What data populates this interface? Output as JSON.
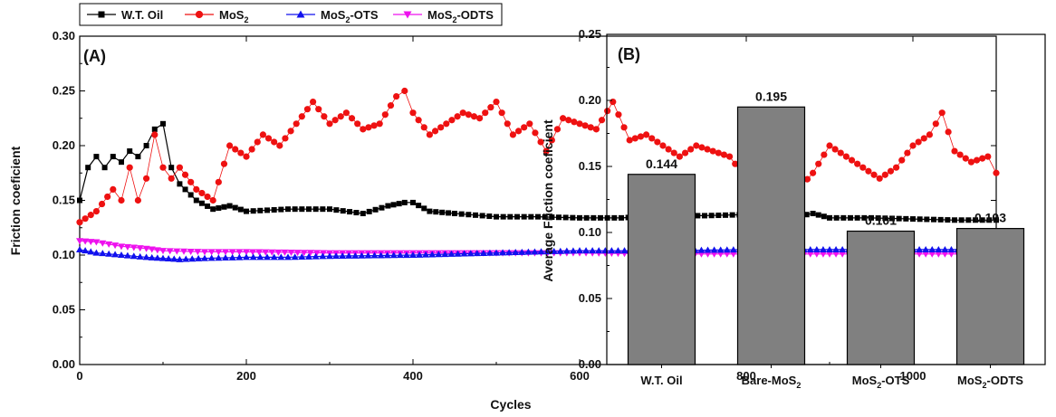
{
  "chart_data": [
    {
      "type": "line",
      "panel_label": "(A)",
      "xlabel": "Cycles",
      "ylabel": "Friction coeficient",
      "xlim": [
        0,
        1100
      ],
      "ylim": [
        0.0,
        0.3
      ],
      "x_ticks": [
        "0",
        "200",
        "400",
        "600",
        "800",
        "1000"
      ],
      "y_ticks": [
        "0.00",
        "0.05",
        "0.10",
        "0.15",
        "0.20",
        "0.25",
        "0.30"
      ],
      "legend_position": "top",
      "legend": [
        {
          "text": "W.T. Oil",
          "sub": "",
          "after": "",
          "color": "#000000",
          "marker": "square"
        },
        {
          "text": "MoS",
          "sub": "2",
          "after": "",
          "color": "#ee1111",
          "marker": "circle"
        },
        {
          "text": "MoS",
          "sub": "2",
          "after": "-OTS",
          "color": "#1111ee",
          "marker": "triangle-up"
        },
        {
          "text": "MoS",
          "sub": "2",
          "after": "-ODTS",
          "color": "#ee11ee",
          "marker": "triangle-down"
        }
      ],
      "series": [
        {
          "name": "W.T. Oil",
          "x": [
            0,
            10,
            20,
            30,
            40,
            50,
            60,
            70,
            80,
            90,
            100,
            110,
            120,
            140,
            160,
            180,
            200,
            250,
            300,
            340,
            370,
            390,
            400,
            420,
            450,
            500,
            550,
            600,
            650,
            700,
            750,
            800,
            850,
            880,
            900,
            950,
            1000,
            1050,
            1100
          ],
          "y": [
            0.15,
            0.18,
            0.19,
            0.18,
            0.19,
            0.185,
            0.195,
            0.19,
            0.2,
            0.215,
            0.22,
            0.18,
            0.165,
            0.15,
            0.142,
            0.145,
            0.14,
            0.142,
            0.142,
            0.138,
            0.145,
            0.148,
            0.148,
            0.14,
            0.138,
            0.135,
            0.135,
            0.134,
            0.134,
            0.136,
            0.136,
            0.137,
            0.134,
            0.138,
            0.134,
            0.134,
            0.133,
            0.132,
            0.132
          ]
        },
        {
          "name": "MoS2",
          "x": [
            0,
            20,
            40,
            50,
            60,
            70,
            80,
            90,
            100,
            110,
            120,
            140,
            160,
            180,
            200,
            220,
            240,
            260,
            280,
            300,
            320,
            340,
            360,
            380,
            390,
            400,
            420,
            440,
            460,
            480,
            500,
            520,
            540,
            560,
            580,
            600,
            620,
            640,
            660,
            680,
            700,
            720,
            740,
            760,
            780,
            800,
            820,
            840,
            860,
            880,
            900,
            920,
            940,
            960,
            980,
            1000,
            1020,
            1035,
            1050,
            1070,
            1090,
            1100
          ],
          "y": [
            0.13,
            0.14,
            0.16,
            0.15,
            0.18,
            0.15,
            0.17,
            0.21,
            0.18,
            0.17,
            0.18,
            0.16,
            0.15,
            0.2,
            0.19,
            0.21,
            0.2,
            0.22,
            0.24,
            0.22,
            0.23,
            0.215,
            0.22,
            0.245,
            0.25,
            0.23,
            0.21,
            0.22,
            0.23,
            0.225,
            0.24,
            0.21,
            0.22,
            0.195,
            0.225,
            0.22,
            0.215,
            0.24,
            0.205,
            0.21,
            0.2,
            0.19,
            0.2,
            0.195,
            0.19,
            0.17,
            0.165,
            0.16,
            0.158,
            0.175,
            0.2,
            0.19,
            0.18,
            0.17,
            0.18,
            0.2,
            0.21,
            0.23,
            0.195,
            0.185,
            0.19,
            0.175
          ]
        },
        {
          "name": "MoS2-OTS",
          "x": [
            0,
            20,
            50,
            80,
            100,
            120,
            150,
            200,
            250,
            300,
            400,
            500,
            600,
            700,
            800,
            900,
            1000,
            1100
          ],
          "y": [
            0.105,
            0.102,
            0.1,
            0.098,
            0.097,
            0.096,
            0.097,
            0.098,
            0.098,
            0.099,
            0.1,
            0.102,
            0.104,
            0.104,
            0.105,
            0.105,
            0.105,
            0.105
          ]
        },
        {
          "name": "MoS2-ODTS",
          "x": [
            0,
            20,
            50,
            80,
            100,
            150,
            200,
            300,
            400,
            500,
            600,
            700,
            800,
            900,
            1000,
            1100
          ],
          "y": [
            0.113,
            0.112,
            0.108,
            0.106,
            0.104,
            0.103,
            0.103,
            0.102,
            0.102,
            0.102,
            0.102,
            0.101,
            0.101,
            0.101,
            0.101,
            0.101
          ]
        }
      ]
    },
    {
      "type": "bar",
      "panel_label": "(B)",
      "xlabel": "",
      "ylabel": "Average Friction coeficient",
      "ylim": [
        0.0,
        0.25
      ],
      "y_ticks": [
        "0.00",
        "0.05",
        "0.10",
        "0.15",
        "0.20",
        "0.25"
      ],
      "categories": [
        {
          "text": "W.T. Oil",
          "sub": "",
          "after": ""
        },
        {
          "text": "Bare-MoS",
          "sub": "2",
          "after": ""
        },
        {
          "text": "MoS",
          "sub": "2",
          "after": "-OTS"
        },
        {
          "text": "MoS",
          "sub": "2",
          "after": "-ODTS"
        }
      ],
      "values": [
        0.144,
        0.195,
        0.101,
        0.103
      ],
      "value_labels": [
        "0.144",
        "0.195",
        "0.101",
        "0.103"
      ],
      "bar_color": "#808080"
    }
  ]
}
